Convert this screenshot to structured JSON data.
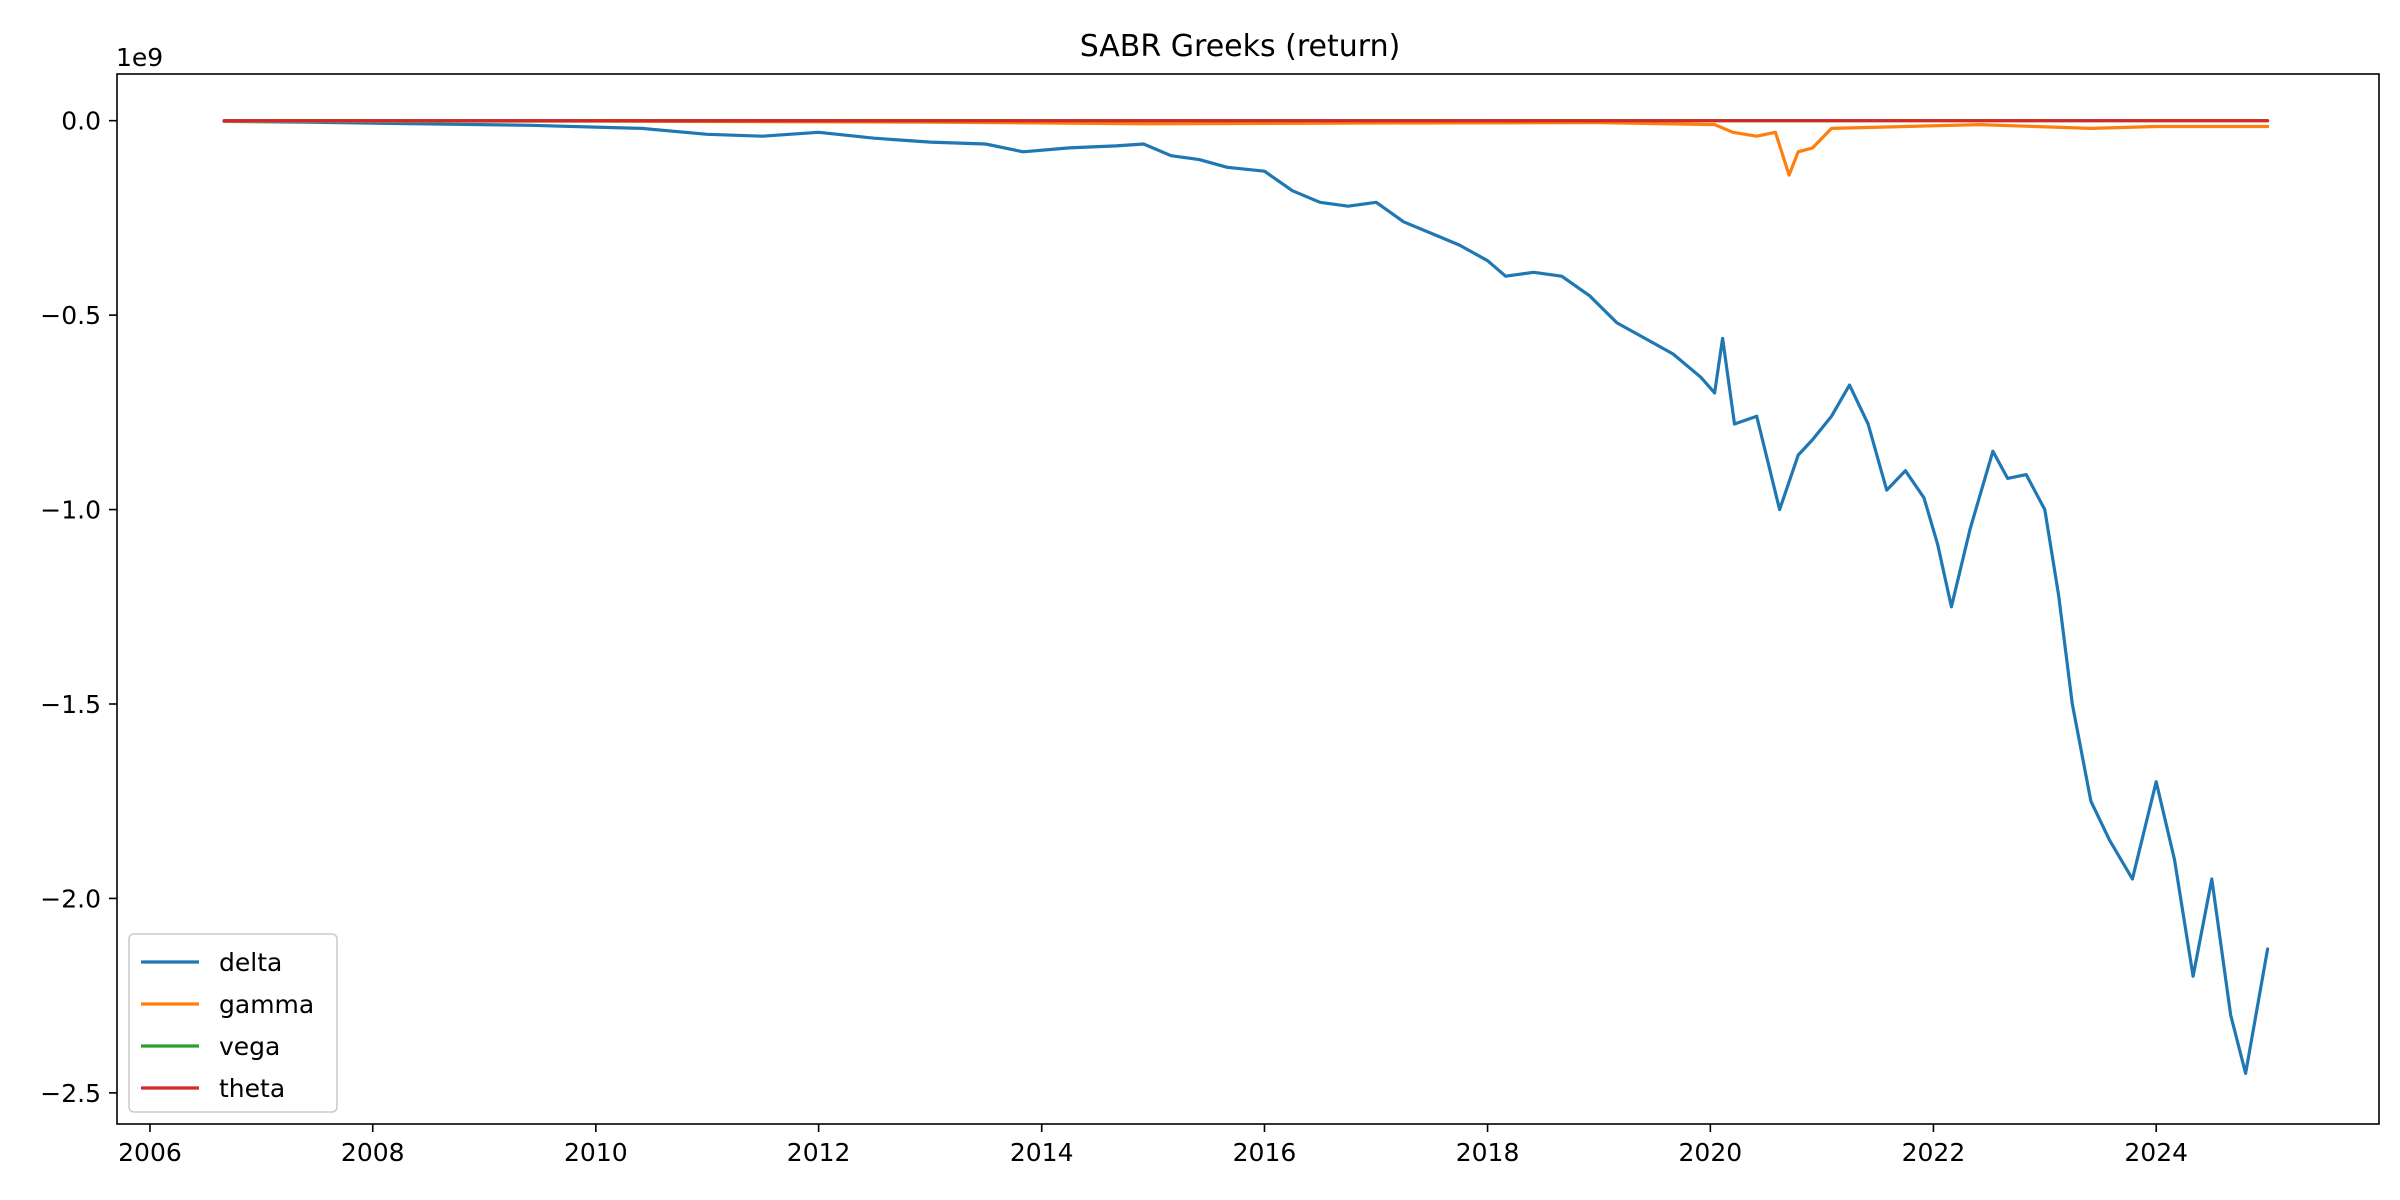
{
  "chart_data": {
    "type": "line",
    "title": "SABR Greeks (return)",
    "xlabel": "",
    "ylabel": "",
    "y_offset_label": "1e9",
    "y_scale": 1000000000.0,
    "xlim": [
      "2005-09-15",
      "2025-12-31"
    ],
    "ylim": [
      -2580000000.0,
      120000000.0
    ],
    "x_ticks": [
      {
        "date": "2006-01-01",
        "label": "2006"
      },
      {
        "date": "2008-01-01",
        "label": "2008"
      },
      {
        "date": "2010-01-01",
        "label": "2010"
      },
      {
        "date": "2012-01-01",
        "label": "2012"
      },
      {
        "date": "2014-01-01",
        "label": "2014"
      },
      {
        "date": "2016-01-01",
        "label": "2016"
      },
      {
        "date": "2018-01-01",
        "label": "2018"
      },
      {
        "date": "2020-01-01",
        "label": "2020"
      },
      {
        "date": "2022-01-01",
        "label": "2022"
      },
      {
        "date": "2024-01-01",
        "label": "2024"
      }
    ],
    "y_ticks": [
      {
        "value": 0.0,
        "label": "0.0"
      },
      {
        "value": -500000000.0,
        "label": "−0.5"
      },
      {
        "value": -1000000000.0,
        "label": "−1.0"
      },
      {
        "value": -1500000000.0,
        "label": "−1.5"
      },
      {
        "value": -2000000000.0,
        "label": "−2.0"
      },
      {
        "value": -2500000000.0,
        "label": "−2.5"
      }
    ],
    "grid": false,
    "legend_position": "lower-left",
    "series": [
      {
        "name": "delta",
        "color": "#1f77b4",
        "points": [
          [
            "2006-09-01",
            -2000000.0
          ],
          [
            "2007-06-01",
            -4000000.0
          ],
          [
            "2008-06-01",
            -8000000.0
          ],
          [
            "2009-06-01",
            -12000000.0
          ],
          [
            "2010-06-01",
            -20000000.0
          ],
          [
            "2011-01-01",
            -35000000.0
          ],
          [
            "2011-07-01",
            -40000000.0
          ],
          [
            "2012-01-01",
            -30000000.0
          ],
          [
            "2012-07-01",
            -45000000.0
          ],
          [
            "2013-01-01",
            -55000000.0
          ],
          [
            "2013-07-01",
            -60000000.0
          ],
          [
            "2013-11-01",
            -80000000.0
          ],
          [
            "2014-04-01",
            -70000000.0
          ],
          [
            "2014-09-01",
            -65000000.0
          ],
          [
            "2014-12-01",
            -60000000.0
          ],
          [
            "2015-03-01",
            -90000000.0
          ],
          [
            "2015-06-01",
            -100000000.0
          ],
          [
            "2015-09-01",
            -120000000.0
          ],
          [
            "2016-01-01",
            -130000000.0
          ],
          [
            "2016-04-01",
            -180000000.0
          ],
          [
            "2016-07-01",
            -210000000.0
          ],
          [
            "2016-10-01",
            -220000000.0
          ],
          [
            "2017-01-01",
            -210000000.0
          ],
          [
            "2017-04-01",
            -260000000.0
          ],
          [
            "2017-07-01",
            -290000000.0
          ],
          [
            "2017-10-01",
            -320000000.0
          ],
          [
            "2018-01-01",
            -360000000.0
          ],
          [
            "2018-03-01",
            -400000000.0
          ],
          [
            "2018-06-01",
            -390000000.0
          ],
          [
            "2018-09-01",
            -400000000.0
          ],
          [
            "2018-12-01",
            -450000000.0
          ],
          [
            "2019-03-01",
            -520000000.0
          ],
          [
            "2019-06-01",
            -560000000.0
          ],
          [
            "2019-09-01",
            -600000000.0
          ],
          [
            "2019-12-01",
            -660000000.0
          ],
          [
            "2020-01-15",
            -700000000.0
          ],
          [
            "2020-02-10",
            -560000000.0
          ],
          [
            "2020-03-20",
            -780000000.0
          ],
          [
            "2020-06-01",
            -760000000.0
          ],
          [
            "2020-08-15",
            -1000000000.0
          ],
          [
            "2020-10-15",
            -860000000.0
          ],
          [
            "2020-12-01",
            -820000000.0
          ],
          [
            "2021-02-01",
            -760000000.0
          ],
          [
            "2021-04-01",
            -680000000.0
          ],
          [
            "2021-06-01",
            -780000000.0
          ],
          [
            "2021-08-01",
            -950000000.0
          ],
          [
            "2021-10-01",
            -900000000.0
          ],
          [
            "2021-12-01",
            -970000000.0
          ],
          [
            "2022-01-15",
            -1090000000.0
          ],
          [
            "2022-03-01",
            -1250000000.0
          ],
          [
            "2022-05-01",
            -1050000000.0
          ],
          [
            "2022-07-15",
            -850000000.0
          ],
          [
            "2022-09-01",
            -920000000.0
          ],
          [
            "2022-11-01",
            -910000000.0
          ],
          [
            "2023-01-01",
            -1000000000.0
          ],
          [
            "2023-02-15",
            -1220000000.0
          ],
          [
            "2023-04-01",
            -1500000000.0
          ],
          [
            "2023-06-01",
            -1750000000.0
          ],
          [
            "2023-08-01",
            -1850000000.0
          ],
          [
            "2023-10-15",
            -1950000000.0
          ],
          [
            "2024-01-01",
            -1700000000.0
          ],
          [
            "2024-03-01",
            -1900000000.0
          ],
          [
            "2024-05-01",
            -2200000000.0
          ],
          [
            "2024-07-01",
            -1950000000.0
          ],
          [
            "2024-09-01",
            -2300000000.0
          ],
          [
            "2024-10-20",
            -2450000000.0
          ],
          [
            "2024-12-31",
            -2130000000.0
          ]
        ]
      },
      {
        "name": "gamma",
        "color": "#ff7f0e",
        "points": [
          [
            "2006-09-01",
            -1000000.0
          ],
          [
            "2010-01-01",
            -1000000.0
          ],
          [
            "2013-01-01",
            -4000000.0
          ],
          [
            "2015-01-01",
            -8000000.0
          ],
          [
            "2017-01-01",
            -6000000.0
          ],
          [
            "2019-01-01",
            -5000000.0
          ],
          [
            "2020-01-15",
            -10000000.0
          ],
          [
            "2020-03-15",
            -30000000.0
          ],
          [
            "2020-06-01",
            -40000000.0
          ],
          [
            "2020-08-01",
            -30000000.0
          ],
          [
            "2020-09-15",
            -140000000.0
          ],
          [
            "2020-10-15",
            -80000000.0
          ],
          [
            "2020-12-01",
            -70000000.0
          ],
          [
            "2021-02-01",
            -20000000.0
          ],
          [
            "2022-06-01",
            -10000000.0
          ],
          [
            "2023-06-01",
            -20000000.0
          ],
          [
            "2024-01-01",
            -15000000.0
          ],
          [
            "2024-12-31",
            -15000000.0
          ]
        ]
      },
      {
        "name": "vega",
        "color": "#2ca02c",
        "points": [
          [
            "2006-09-01",
            0.0
          ],
          [
            "2024-12-31",
            0.0
          ]
        ]
      },
      {
        "name": "theta",
        "color": "#d62728",
        "points": [
          [
            "2006-09-01",
            0.0
          ],
          [
            "2024-12-31",
            0.0
          ]
        ]
      }
    ]
  }
}
